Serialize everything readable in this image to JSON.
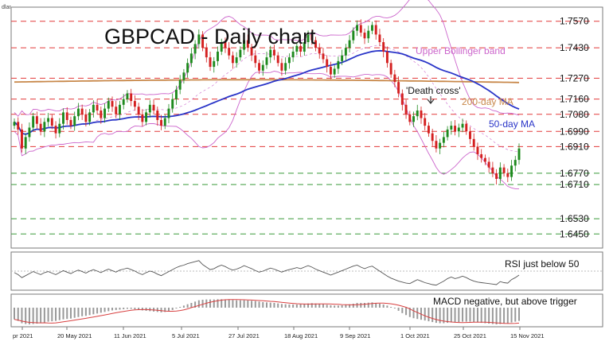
{
  "header_stub": "dlar",
  "chart_data": [
    {
      "type": "candlestick",
      "title": "GBPCAD - Daily chart",
      "ylim": [
        1.638,
        1.764
      ],
      "levels": [
        {
          "label": "1.7570",
          "value": 1.757,
          "color": "#e23a3a"
        },
        {
          "label": "1.7430",
          "value": 1.743,
          "color": "#e23a3a"
        },
        {
          "label": "1.7270",
          "value": 1.727,
          "color": "#e23a3a"
        },
        {
          "label": "1.7160",
          "value": 1.716,
          "color": "#e23a3a"
        },
        {
          "label": "1.7080",
          "value": 1.708,
          "color": "#e23a3a"
        },
        {
          "label": "1.6990",
          "value": 1.699,
          "color": "#e23a3a"
        },
        {
          "label": "1.6910",
          "value": 1.691,
          "color": "#e23a3a"
        },
        {
          "label": "1.6770",
          "value": 1.677,
          "color": "#3a9a3a"
        },
        {
          "label": "1.6710",
          "value": 1.671,
          "color": "#3a9a3a"
        },
        {
          "label": "1.6530",
          "value": 1.653,
          "color": "#3a9a3a"
        },
        {
          "label": "1.6450",
          "value": 1.645,
          "color": "#3a9a3a"
        }
      ],
      "annotations": {
        "upper_bollinger": "Upper Bollinger band",
        "death_cross": "'Death cross'",
        "ma200": "200-day MA",
        "ma50": "50-day MA"
      },
      "series_colors": {
        "up": "#1e8a1e",
        "down": "#d42020",
        "ma50": "#2a35c8",
        "ma200": "#c8884a",
        "bollinger": "#cc66cc"
      },
      "candles_close": [
        1.704,
        1.7,
        1.69,
        1.696,
        1.701,
        1.707,
        1.703,
        1.699,
        1.704,
        1.706,
        1.702,
        1.698,
        1.703,
        1.709,
        1.705,
        1.702,
        1.707,
        1.711,
        1.708,
        1.704,
        1.709,
        1.713,
        1.71,
        1.706,
        1.711,
        1.715,
        1.712,
        1.708,
        1.713,
        1.716,
        1.719,
        1.715,
        1.712,
        1.708,
        1.704,
        1.709,
        1.713,
        1.71,
        1.705,
        1.702,
        1.706,
        1.711,
        1.716,
        1.721,
        1.726,
        1.73,
        1.735,
        1.74,
        1.745,
        1.75,
        1.743,
        1.738,
        1.733,
        1.736,
        1.741,
        1.746,
        1.743,
        1.739,
        1.735,
        1.738,
        1.742,
        1.747,
        1.743,
        1.739,
        1.735,
        1.731,
        1.734,
        1.738,
        1.742,
        1.739,
        1.735,
        1.731,
        1.735,
        1.738,
        1.741,
        1.744,
        1.741,
        1.746,
        1.75,
        1.747,
        1.743,
        1.74,
        1.737,
        1.733,
        1.729,
        1.732,
        1.736,
        1.739,
        1.743,
        1.747,
        1.752,
        1.755,
        1.751,
        1.748,
        1.752,
        1.755,
        1.75,
        1.746,
        1.741,
        1.735,
        1.729,
        1.725,
        1.719,
        1.713,
        1.708,
        1.704,
        1.707,
        1.71,
        1.706,
        1.702,
        1.698,
        1.694,
        1.69,
        1.693,
        1.696,
        1.7,
        1.702,
        1.699,
        1.701,
        1.703,
        1.699,
        1.695,
        1.691,
        1.687,
        1.685,
        1.683,
        1.68,
        1.677,
        1.674,
        1.68,
        1.677,
        1.675,
        1.681,
        1.684,
        1.69
      ]
    },
    {
      "type": "line",
      "label": "RSI just below 50",
      "color": "#555555",
      "values": [
        52,
        48,
        42,
        46,
        50,
        54,
        51,
        48,
        52,
        54,
        51,
        48,
        52,
        56,
        53,
        50,
        54,
        57,
        54,
        51,
        55,
        58,
        55,
        52,
        56,
        59,
        56,
        53,
        57,
        59,
        61,
        58,
        55,
        51,
        48,
        52,
        55,
        53,
        49,
        46,
        50,
        54,
        58,
        62,
        65,
        67,
        70,
        72,
        74,
        76,
        68,
        63,
        58,
        60,
        64,
        67,
        64,
        60,
        57,
        59,
        62,
        66,
        63,
        60,
        56,
        53,
        55,
        58,
        61,
        59,
        56,
        53,
        56,
        58,
        60,
        62,
        60,
        63,
        66,
        63,
        59,
        56,
        53,
        50,
        47,
        50,
        53,
        56,
        59,
        62,
        65,
        67,
        63,
        60,
        63,
        65,
        60,
        55,
        50,
        45,
        41,
        38,
        35,
        33,
        31,
        30,
        34,
        38,
        35,
        32,
        30,
        28,
        27,
        31,
        35,
        40,
        43,
        40,
        42,
        45,
        42,
        38,
        35,
        33,
        32,
        31,
        30,
        29,
        28,
        34,
        32,
        31,
        38,
        42,
        47
      ]
    },
    {
      "type": "histogram",
      "label": "MACD negative, but above trigger",
      "color": "#999999",
      "line_color": "#d84040",
      "values": [
        -0.003,
        -0.0034,
        -0.004,
        -0.0042,
        -0.0043,
        -0.0042,
        -0.0041,
        -0.004,
        -0.0038,
        -0.0036,
        -0.0035,
        -0.0034,
        -0.0032,
        -0.003,
        -0.0029,
        -0.0028,
        -0.0026,
        -0.0024,
        -0.0022,
        -0.0021,
        -0.0019,
        -0.0017,
        -0.0015,
        -0.0013,
        -0.0011,
        -0.0009,
        -0.0007,
        -0.0006,
        -0.0005,
        -0.0004,
        -0.0003,
        -0.0003,
        -0.0004,
        -0.0005,
        -0.0007,
        -0.0008,
        -0.0009,
        -0.001,
        -0.0011,
        -0.0012,
        -0.0011,
        -0.0009,
        -0.0006,
        -0.0002,
        0.0003,
        0.0008,
        0.0013,
        0.0018,
        0.0023,
        0.0028,
        0.003,
        0.0031,
        0.0031,
        0.0031,
        0.0032,
        0.0032,
        0.0031,
        0.003,
        0.0029,
        0.0028,
        0.0028,
        0.0028,
        0.0027,
        0.0026,
        0.0025,
        0.0023,
        0.0021,
        0.002,
        0.0019,
        0.0018,
        0.0016,
        0.0014,
        0.0013,
        0.0012,
        0.0012,
        0.0012,
        0.0013,
        0.0014,
        0.0016,
        0.0017,
        0.0016,
        0.0015,
        0.0013,
        0.0011,
        0.0009,
        0.0008,
        0.0008,
        0.0009,
        0.0011,
        0.0013,
        0.0015,
        0.0018,
        0.0018,
        0.0018,
        0.0019,
        0.002,
        0.0018,
        0.0015,
        0.0012,
        0.0008,
        0.0003,
        -0.0002,
        -0.0008,
        -0.0014,
        -0.0019,
        -0.0024,
        -0.0027,
        -0.0029,
        -0.0031,
        -0.0033,
        -0.0035,
        -0.0037,
        -0.0039,
        -0.004,
        -0.004,
        -0.0039,
        -0.0038,
        -0.0038,
        -0.0037,
        -0.0036,
        -0.0036,
        -0.0036,
        -0.0037,
        -0.0038,
        -0.0039,
        -0.004,
        -0.0041,
        -0.0042,
        -0.0043,
        -0.0042,
        -0.0041,
        -0.004,
        -0.0038,
        -0.0036,
        -0.0034
      ]
    }
  ],
  "x_axis_labels": [
    "pr 2021",
    "20 May 2021",
    "11 Jun 2021",
    "5 Jul 2021",
    "27 Jul 2021",
    "18 Aug 2021",
    "9 Sep 2021",
    "1 Oct 2021",
    "25 Oct 2021",
    "15 Nov 2021"
  ]
}
